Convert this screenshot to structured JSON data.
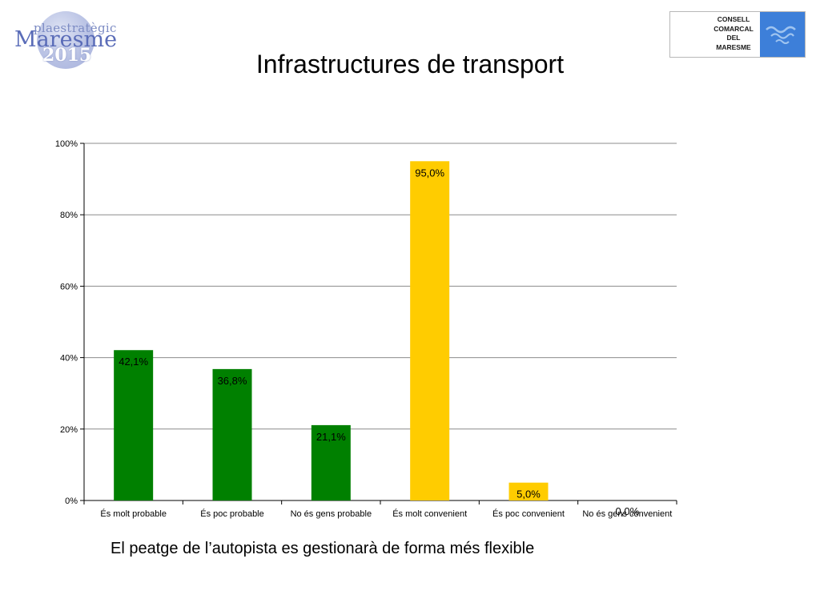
{
  "header": {
    "logo_left": {
      "pla": "plaestratègic",
      "name": "Maresme",
      "year": "2015"
    },
    "logo_right": {
      "lines": [
        "CONSELL",
        "COMARCAL",
        "DEL",
        "MARESME"
      ]
    },
    "title": "Infrastructures de transport"
  },
  "chart_data": {
    "type": "bar",
    "title": "Infrastructures de transport",
    "categories": [
      "És molt probable",
      "És poc probable",
      "No és gens probable",
      "És molt convenient",
      "És poc convenient",
      "No és gens convenient"
    ],
    "values": [
      42.1,
      36.8,
      21.1,
      95.0,
      5.0,
      0.0
    ],
    "value_labels": [
      "42,1%",
      "36,8%",
      "21,1%",
      "95,0%",
      "5,0%",
      "0,0%"
    ],
    "colors": [
      "#008000",
      "#008000",
      "#008000",
      "#FFCC00",
      "#FFCC00",
      "#FFCC00"
    ],
    "yticks": [
      "0%",
      "20%",
      "40%",
      "60%",
      "80%",
      "100%"
    ],
    "ylim": [
      0,
      100
    ],
    "grid": true,
    "legend": "none"
  },
  "caption": "El peatge de l’autopista es gestionarà de forma més flexible"
}
